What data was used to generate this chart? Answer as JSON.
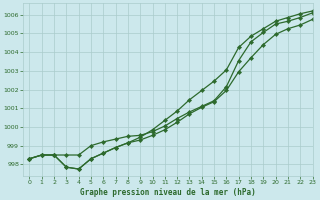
{
  "title": "Graphe pression niveau de la mer (hPa)",
  "bg_color": "#cce8ec",
  "grid_color": "#aacccc",
  "line_color": "#2d6a2d",
  "xlim": [
    -0.5,
    23
  ],
  "ylim": [
    997.4,
    1006.6
  ],
  "yticks": [
    998,
    999,
    1000,
    1001,
    1002,
    1003,
    1004,
    1005,
    1006
  ],
  "xticks": [
    0,
    1,
    2,
    3,
    4,
    5,
    6,
    7,
    8,
    9,
    10,
    11,
    12,
    13,
    14,
    15,
    16,
    17,
    18,
    19,
    20,
    21,
    22,
    23
  ],
  "series1_x": [
    0,
    1,
    2,
    3,
    4,
    5,
    6,
    7,
    8,
    9,
    10,
    11,
    12,
    13,
    14,
    15,
    16,
    17,
    18,
    19,
    20,
    21,
    22,
    23
  ],
  "series1_y": [
    998.3,
    998.5,
    998.5,
    997.85,
    997.75,
    998.3,
    998.6,
    998.9,
    999.15,
    999.3,
    999.55,
    999.85,
    1000.25,
    1000.7,
    1001.05,
    1001.35,
    1001.95,
    1002.95,
    1003.7,
    1004.4,
    1004.95,
    1005.25,
    1005.45,
    1005.75
  ],
  "series2_x": [
    0,
    1,
    2,
    3,
    4,
    5,
    6,
    7,
    8,
    9,
    10,
    11,
    12,
    13,
    14,
    15,
    16,
    17,
    18,
    19,
    20,
    21,
    22,
    23
  ],
  "series2_y": [
    998.3,
    998.5,
    998.5,
    998.5,
    998.5,
    999.0,
    999.2,
    999.35,
    999.5,
    999.55,
    999.75,
    1000.05,
    1000.45,
    1000.8,
    1001.1,
    1001.4,
    1002.15,
    1003.55,
    1004.55,
    1005.05,
    1005.5,
    1005.65,
    1005.85,
    1006.1
  ],
  "series3_x": [
    0,
    1,
    2,
    3,
    4,
    5,
    6,
    7,
    8,
    9,
    10,
    11,
    12,
    13,
    14,
    15,
    16,
    17,
    18,
    19,
    20,
    21,
    22,
    23
  ],
  "series3_y": [
    998.3,
    998.5,
    998.5,
    997.85,
    997.75,
    998.3,
    998.6,
    998.9,
    999.15,
    999.45,
    999.85,
    1000.35,
    1000.85,
    1001.45,
    1001.95,
    1002.45,
    1003.05,
    1004.25,
    1004.85,
    1005.25,
    1005.65,
    1005.85,
    1006.05,
    1006.2
  ]
}
